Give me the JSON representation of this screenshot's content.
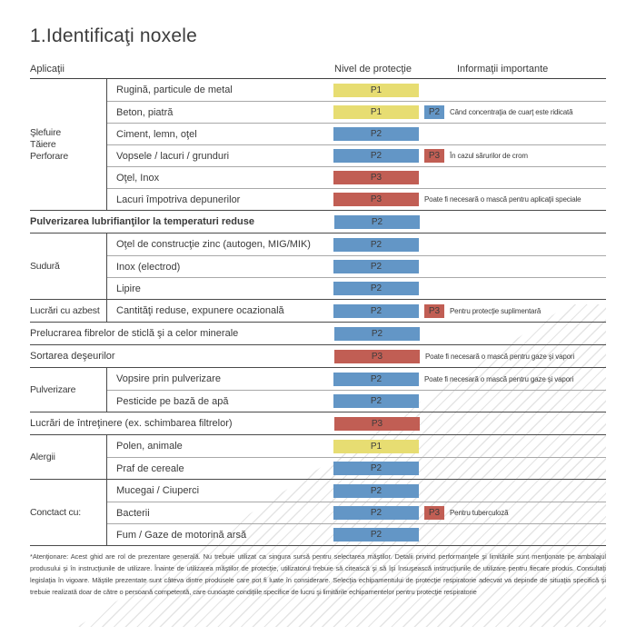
{
  "page": {
    "title": "1.Identificaţi noxele",
    "columns": {
      "applications": "Aplicaţii",
      "protection": "Nivel de protecţie",
      "info": "Informaţii importante"
    },
    "footnote": "*Atenţionare: Acest ghid are rol de prezentare generală. Nu trebuie utilizat ca singura sursă pentru selectarea măştilor. Detalii privind performanţele şi limitările sunt menţionate pe ambalajul produsului şi în instrucţiunile de utilizare. Înainte de utilizarea măştilor de protecţie, utilizatorul trebuie să citească şi să îşi însuşească instrucţiunile de utilizare pentru fiecare produs. Consultaţi legislaţia în vigoare. Măştile prezentate sunt câteva dintre produsele care pot fi luate în considerare. Selecţia echipamentului de protecţie respiratorie adecvat va depinde de situaţia specifică şi trebuie realizată doar de către o persoană competentă, care cunoaşte condiţiile specifice de lucru şi limitările echipamentelor pentru protecţie respiratorie",
    "colors": {
      "p1": "#e7dd72",
      "p2": "#6396c6",
      "p3": "#c15e54"
    }
  },
  "sections": [
    {
      "type": "group",
      "label": "Şlefuire\nTăiere\nPerforare",
      "rows": [
        {
          "label": "Rugină, particule de metal",
          "badge": "P1"
        },
        {
          "label": "Beton, piatră",
          "badge": "P1",
          "badge2": "P2",
          "note": "Când concentraţia de cuarţ este ridicată"
        },
        {
          "label": "Ciment, lemn, oţel",
          "badge": "P2"
        },
        {
          "label": "Vopsele / lacuri / grunduri",
          "badge": "P2",
          "badge2": "P3",
          "note": "În cazul sărurilor de crom"
        },
        {
          "label": "Oţel, Inox",
          "badge": "P3"
        },
        {
          "label": "Lacuri împotriva depunerilor",
          "badge": "P3",
          "note": "Poate fi necesară o mască pentru aplicaţii speciale"
        }
      ]
    },
    {
      "type": "full",
      "bold": true,
      "rows": [
        {
          "label": "Pulverizarea lubrifianţilor la temperaturi reduse",
          "badge": "P2"
        }
      ]
    },
    {
      "type": "group",
      "label": "Sudură",
      "rows": [
        {
          "label": "Oţel de construcţie zinc (autogen, MIG/MIK)",
          "badge": "P2"
        },
        {
          "label": "Inox (electrod)",
          "badge": "P2"
        },
        {
          "label": "Lipire",
          "badge": "P2"
        }
      ]
    },
    {
      "type": "group",
      "label": "Lucrări cu azbest",
      "rows": [
        {
          "label": "Cantităţi reduse, expunere ocazională",
          "badge": "P2",
          "badge2": "P3",
          "note": "Pentru protecţie suplimentară"
        }
      ]
    },
    {
      "type": "full",
      "rows": [
        {
          "label": "Prelucrarea fibrelor de sticlă şi a celor minerale",
          "badge": "P2"
        }
      ]
    },
    {
      "type": "full",
      "rows": [
        {
          "label": "Sortarea deşeurilor",
          "badge": "P3",
          "note": "Poate fi necesară o mască pentru gaze şi vapori"
        }
      ]
    },
    {
      "type": "group",
      "label": "Pulverizare",
      "rows": [
        {
          "label": "Vopsire prin pulverizare",
          "badge": "P2",
          "note": "Poate fi necesară o mască pentru gaze şi vapori"
        },
        {
          "label": "Pesticide pe bază de apă",
          "badge": "P2"
        }
      ]
    },
    {
      "type": "full",
      "rows": [
        {
          "label": "Lucrări de întreţinere (ex. schimbarea filtrelor)",
          "badge": "P3"
        }
      ]
    },
    {
      "type": "group",
      "label": "Alergii",
      "rows": [
        {
          "label": "Polen, animale",
          "badge": "P1"
        },
        {
          "label": "Praf de cereale",
          "badge": "P2"
        }
      ]
    },
    {
      "type": "group",
      "label": "Conctact cu:",
      "rows": [
        {
          "label": "Mucegai / Ciuperci",
          "badge": "P2"
        },
        {
          "label": "Bacterii",
          "badge": "P2",
          "badge2": "P3",
          "note": "Pentru tuberculoză"
        },
        {
          "label": "Fum / Gaze de motorină arsă",
          "badge": "P2"
        }
      ]
    }
  ]
}
